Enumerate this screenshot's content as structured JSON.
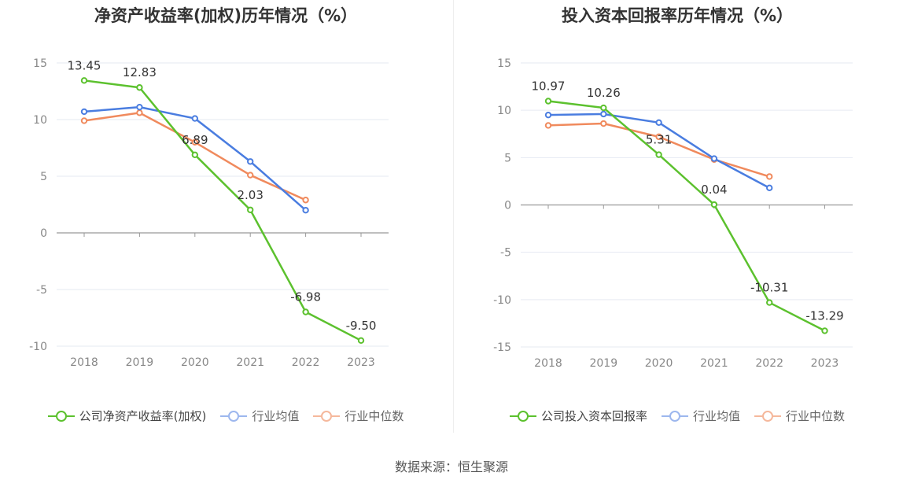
{
  "chart_data": [
    {
      "type": "line",
      "title": "净资产收益率(加权)历年情况（%）",
      "categories": [
        "2018",
        "2019",
        "2020",
        "2021",
        "2022",
        "2023"
      ],
      "ylim": [
        -10,
        15
      ],
      "yticks": [
        "15",
        "10",
        "5",
        "0",
        "-5",
        "-10"
      ],
      "grid": true,
      "legend_position": "bottom",
      "series": [
        {
          "name": "公司净资产收益率(加权)",
          "color": "#5cc12e",
          "values": [
            13.45,
            12.83,
            6.89,
            2.03,
            -6.98,
            -9.5
          ],
          "labels": [
            "13.45",
            "12.83",
            "6.89",
            "2.03",
            "-6.98",
            "-9.50"
          ]
        },
        {
          "name": "行业均值",
          "color": "#4a7de0",
          "values": [
            10.7,
            11.1,
            10.1,
            6.3,
            2.0,
            null
          ]
        },
        {
          "name": "行业中位数",
          "color": "#f08a5d",
          "values": [
            9.9,
            10.6,
            8.0,
            5.1,
            2.9,
            null
          ]
        }
      ]
    },
    {
      "type": "line",
      "title": "投入资本回报率历年情况（%）",
      "categories": [
        "2018",
        "2019",
        "2020",
        "2021",
        "2022",
        "2023"
      ],
      "ylim": [
        -15,
        15
      ],
      "yticks": [
        "15",
        "10",
        "5",
        "0",
        "-5",
        "-10",
        "-15"
      ],
      "grid": true,
      "legend_position": "bottom",
      "series": [
        {
          "name": "公司投入资本回报率",
          "color": "#5cc12e",
          "values": [
            10.97,
            10.26,
            5.31,
            0.04,
            -10.31,
            -13.29
          ],
          "labels": [
            "10.97",
            "10.26",
            "5.31",
            "0.04",
            "-10.31",
            "-13.29"
          ]
        },
        {
          "name": "行业均值",
          "color": "#4a7de0",
          "values": [
            9.5,
            9.6,
            8.7,
            4.9,
            1.8,
            null
          ]
        },
        {
          "name": "行业中位数",
          "color": "#f08a5d",
          "values": [
            8.4,
            8.6,
            7.2,
            4.8,
            3.0,
            null
          ]
        }
      ]
    }
  ],
  "source_text": "数据来源：恒生聚源"
}
